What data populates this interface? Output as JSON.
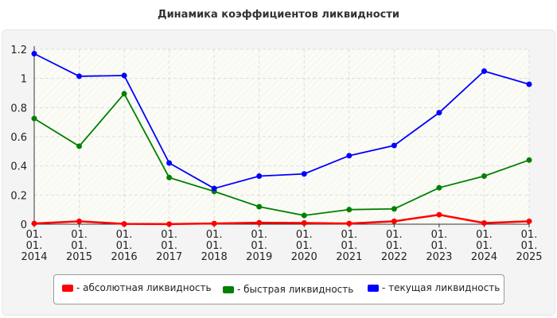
{
  "chart_data": {
    "type": "line",
    "title": "Динамика коэффициентов ликвидности",
    "x": [
      "01.\n01.\n2014",
      "01.\n01.\n2015",
      "01.\n01.\n2016",
      "01.\n01.\n2017",
      "01.\n01.\n2018",
      "01.\n01.\n2019",
      "01.\n01.\n2020",
      "01.\n01.\n2021",
      "01.\n01.\n2022",
      "01.\n01.\n2023",
      "01.\n01.\n2024",
      "01.\n01.\n2025"
    ],
    "ylim": [
      0,
      1.2
    ],
    "yticks": [
      "0",
      "0.2",
      "0.4",
      "0.6",
      "0.8",
      "1",
      "1.2"
    ],
    "grid": true,
    "legend_position": "bottom",
    "series": [
      {
        "name": "- абсолютная ликвидность",
        "color": "#ff0000",
        "values": [
          0.005,
          0.02,
          0.002,
          0.001,
          0.005,
          0.01,
          0.008,
          0.005,
          0.02,
          0.065,
          0.008,
          0.02
        ]
      },
      {
        "name": "- быстрая ликвидность",
        "color": "#008000",
        "values": [
          0.725,
          0.535,
          0.895,
          0.32,
          0.225,
          0.12,
          0.06,
          0.1,
          0.105,
          0.25,
          0.33,
          0.44
        ]
      },
      {
        "name": "- текущая ликвидность",
        "color": "#0000ff",
        "values": [
          1.17,
          1.015,
          1.02,
          0.42,
          0.245,
          0.33,
          0.345,
          0.47,
          0.54,
          0.765,
          1.05,
          0.96
        ]
      }
    ]
  }
}
